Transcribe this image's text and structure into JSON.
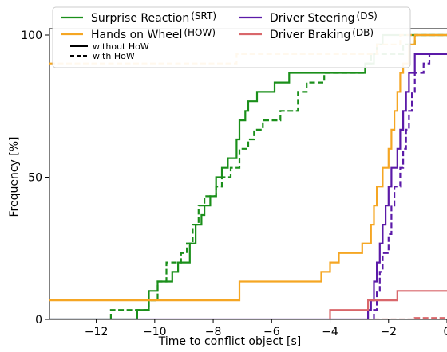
{
  "chart_data": {
    "type": "line",
    "title": "",
    "xlabel": "Time to conflict object [s]",
    "ylabel": "Frequency [%]",
    "xlim": [
      -13.6,
      0
    ],
    "ylim": [
      0,
      100
    ],
    "xticks": [
      -12,
      -10,
      -8,
      -6,
      -4,
      -2,
      0
    ],
    "xtick_labels": [
      "−12",
      "−10",
      "−8",
      "−6",
      "−4",
      "−2",
      "0"
    ],
    "yticks": [
      0,
      50,
      100
    ],
    "ytick_labels": [
      "0",
      "50",
      "100"
    ],
    "grid": false,
    "legend": {
      "placement": "top-left",
      "entries": [
        {
          "name": "Surprise Reaction",
          "abbr": "(SRT)",
          "color": "#1a8f1a"
        },
        {
          "name": "Hands on Wheel",
          "abbr": "(HOW)",
          "color": "#f5a623"
        },
        {
          "name": "Driver Steering",
          "abbr": "(DS)",
          "color": "#5b1aa8"
        },
        {
          "name": "Driver Braking",
          "abbr": "(DB)",
          "color": "#d9676b"
        }
      ],
      "style_entries": [
        {
          "label": "without HoW",
          "dash": "solid"
        },
        {
          "label": "with HoW",
          "dash": "dashed"
        }
      ]
    },
    "series": [
      {
        "key": "srt_solid",
        "color": "#1a8f1a",
        "dash": "solid",
        "points": [
          [
            -13.6,
            0
          ],
          [
            -10.6,
            0
          ],
          [
            -10.6,
            3.3
          ],
          [
            -10.2,
            3.3
          ],
          [
            -10.2,
            10
          ],
          [
            -9.9,
            10
          ],
          [
            -9.9,
            13.3
          ],
          [
            -9.4,
            13.3
          ],
          [
            -9.4,
            16.7
          ],
          [
            -9.2,
            16.7
          ],
          [
            -9.2,
            20
          ],
          [
            -8.8,
            20
          ],
          [
            -8.8,
            26.7
          ],
          [
            -8.6,
            26.7
          ],
          [
            -8.6,
            33.3
          ],
          [
            -8.4,
            33.3
          ],
          [
            -8.4,
            36.7
          ],
          [
            -8.3,
            36.7
          ],
          [
            -8.3,
            40
          ],
          [
            -8.1,
            40
          ],
          [
            -8.1,
            43.3
          ],
          [
            -7.9,
            43.3
          ],
          [
            -7.9,
            50
          ],
          [
            -7.7,
            50
          ],
          [
            -7.7,
            53.3
          ],
          [
            -7.5,
            53.3
          ],
          [
            -7.5,
            56.7
          ],
          [
            -7.2,
            56.7
          ],
          [
            -7.2,
            63.3
          ],
          [
            -7.1,
            63.3
          ],
          [
            -7.1,
            70
          ],
          [
            -6.9,
            70
          ],
          [
            -6.9,
            73.3
          ],
          [
            -6.8,
            73.3
          ],
          [
            -6.8,
            76.7
          ],
          [
            -6.5,
            76.7
          ],
          [
            -6.5,
            80
          ],
          [
            -5.9,
            80
          ],
          [
            -5.9,
            83.3
          ],
          [
            -5.4,
            83.3
          ],
          [
            -5.4,
            86.7
          ],
          [
            -2.8,
            86.7
          ],
          [
            -2.8,
            90
          ],
          [
            -2.5,
            90
          ],
          [
            -2.5,
            93.3
          ],
          [
            -2.4,
            93.3
          ],
          [
            -2.4,
            96.7
          ],
          [
            -2.2,
            96.7
          ],
          [
            -2.2,
            100
          ],
          [
            0,
            100
          ]
        ]
      },
      {
        "key": "srt_dashed",
        "color": "#1a8f1a",
        "dash": "dashed",
        "points": [
          [
            -11.5,
            0
          ],
          [
            -11.5,
            3.3
          ],
          [
            -10.2,
            3.3
          ],
          [
            -10.2,
            6.7
          ],
          [
            -9.9,
            6.7
          ],
          [
            -9.9,
            13.3
          ],
          [
            -9.6,
            13.3
          ],
          [
            -9.6,
            20
          ],
          [
            -9.1,
            20
          ],
          [
            -9.1,
            23.3
          ],
          [
            -8.9,
            23.3
          ],
          [
            -8.9,
            26.7
          ],
          [
            -8.7,
            26.7
          ],
          [
            -8.7,
            33.3
          ],
          [
            -8.5,
            33.3
          ],
          [
            -8.5,
            40
          ],
          [
            -8.3,
            40
          ],
          [
            -8.3,
            43.3
          ],
          [
            -7.9,
            43.3
          ],
          [
            -7.9,
            46.7
          ],
          [
            -7.7,
            46.7
          ],
          [
            -7.7,
            50
          ],
          [
            -7.4,
            50
          ],
          [
            -7.4,
            53.3
          ],
          [
            -7.1,
            53.3
          ],
          [
            -7.1,
            60
          ],
          [
            -6.8,
            60
          ],
          [
            -6.8,
            63.3
          ],
          [
            -6.6,
            63.3
          ],
          [
            -6.6,
            66.7
          ],
          [
            -6.3,
            66.7
          ],
          [
            -6.3,
            70
          ],
          [
            -5.7,
            70
          ],
          [
            -5.7,
            73.3
          ],
          [
            -5.1,
            73.3
          ],
          [
            -5.1,
            80
          ],
          [
            -4.8,
            80
          ],
          [
            -4.8,
            83.3
          ],
          [
            -4.2,
            83.3
          ],
          [
            -4.2,
            86.7
          ],
          [
            -2.8,
            86.7
          ],
          [
            -2.8,
            90
          ],
          [
            -2.6,
            90
          ],
          [
            -2.6,
            93.3
          ],
          [
            -1.5,
            93.3
          ],
          [
            -1.5,
            96.7
          ],
          [
            -1.1,
            96.7
          ],
          [
            -1.1,
            100
          ],
          [
            0,
            100
          ]
        ]
      },
      {
        "key": "how_solid",
        "color": "#f5a623",
        "dash": "solid",
        "points": [
          [
            -13.6,
            6.7
          ],
          [
            -7.1,
            6.7
          ],
          [
            -7.1,
            13.3
          ],
          [
            -4.3,
            13.3
          ],
          [
            -4.3,
            16.7
          ],
          [
            -4.0,
            16.7
          ],
          [
            -4.0,
            20
          ],
          [
            -3.7,
            20
          ],
          [
            -3.7,
            23.3
          ],
          [
            -2.9,
            23.3
          ],
          [
            -2.9,
            26.7
          ],
          [
            -2.6,
            26.7
          ],
          [
            -2.6,
            33.3
          ],
          [
            -2.5,
            33.3
          ],
          [
            -2.5,
            40
          ],
          [
            -2.4,
            40
          ],
          [
            -2.4,
            46.7
          ],
          [
            -2.2,
            46.7
          ],
          [
            -2.2,
            53.3
          ],
          [
            -2.0,
            53.3
          ],
          [
            -2.0,
            60
          ],
          [
            -1.9,
            60
          ],
          [
            -1.9,
            66.7
          ],
          [
            -1.8,
            66.7
          ],
          [
            -1.8,
            73.3
          ],
          [
            -1.7,
            73.3
          ],
          [
            -1.7,
            80
          ],
          [
            -1.6,
            80
          ],
          [
            -1.6,
            86.7
          ],
          [
            -1.5,
            86.7
          ],
          [
            -1.5,
            90
          ],
          [
            -1.3,
            90
          ],
          [
            -1.3,
            96.7
          ],
          [
            -1.1,
            96.7
          ],
          [
            -1.1,
            100
          ],
          [
            0,
            100
          ]
        ]
      },
      {
        "key": "how_dashed",
        "color": "#f5a623",
        "dash": "dashed",
        "points": [
          [
            -13.6,
            90
          ],
          [
            -7.2,
            90
          ],
          [
            -7.2,
            93.3
          ],
          [
            -2.4,
            93.3
          ],
          [
            -2.4,
            96.7
          ],
          [
            -1.6,
            96.7
          ],
          [
            -1.6,
            100
          ],
          [
            0,
            100
          ]
        ]
      },
      {
        "key": "ds_solid",
        "color": "#5b1aa8",
        "dash": "solid",
        "points": [
          [
            -13.6,
            0
          ],
          [
            -2.7,
            0
          ],
          [
            -2.7,
            3.3
          ],
          [
            -2.6,
            3.3
          ],
          [
            -2.6,
            6.7
          ],
          [
            -2.5,
            6.7
          ],
          [
            -2.5,
            13.3
          ],
          [
            -2.4,
            13.3
          ],
          [
            -2.4,
            20
          ],
          [
            -2.3,
            20
          ],
          [
            -2.3,
            26.7
          ],
          [
            -2.2,
            26.7
          ],
          [
            -2.2,
            33.3
          ],
          [
            -2.1,
            33.3
          ],
          [
            -2.1,
            40
          ],
          [
            -2.0,
            40
          ],
          [
            -2.0,
            46.7
          ],
          [
            -1.9,
            46.7
          ],
          [
            -1.9,
            53.3
          ],
          [
            -1.7,
            53.3
          ],
          [
            -1.7,
            60
          ],
          [
            -1.6,
            60
          ],
          [
            -1.6,
            66.7
          ],
          [
            -1.5,
            66.7
          ],
          [
            -1.5,
            73.3
          ],
          [
            -1.4,
            73.3
          ],
          [
            -1.4,
            80
          ],
          [
            -1.3,
            80
          ],
          [
            -1.3,
            86.7
          ],
          [
            -1.1,
            86.7
          ],
          [
            -1.1,
            93.3
          ],
          [
            0,
            93.3
          ]
        ]
      },
      {
        "key": "ds_dashed",
        "color": "#5b1aa8",
        "dash": "dashed",
        "points": [
          [
            -2.5,
            0
          ],
          [
            -2.5,
            3.3
          ],
          [
            -2.4,
            3.3
          ],
          [
            -2.4,
            10
          ],
          [
            -2.3,
            10
          ],
          [
            -2.3,
            16.7
          ],
          [
            -2.2,
            16.7
          ],
          [
            -2.2,
            23.3
          ],
          [
            -2.0,
            23.3
          ],
          [
            -2.0,
            30
          ],
          [
            -1.9,
            30
          ],
          [
            -1.9,
            40
          ],
          [
            -1.8,
            40
          ],
          [
            -1.8,
            46.7
          ],
          [
            -1.6,
            46.7
          ],
          [
            -1.6,
            53.3
          ],
          [
            -1.5,
            53.3
          ],
          [
            -1.5,
            60
          ],
          [
            -1.4,
            60
          ],
          [
            -1.4,
            66.7
          ],
          [
            -1.3,
            66.7
          ],
          [
            -1.3,
            73.3
          ],
          [
            -1.2,
            73.3
          ],
          [
            -1.2,
            80
          ],
          [
            -1.1,
            80
          ],
          [
            -1.1,
            86.7
          ],
          [
            -0.8,
            86.7
          ],
          [
            -0.8,
            90
          ],
          [
            -0.6,
            90
          ],
          [
            -0.6,
            93.3
          ],
          [
            0,
            93.3
          ]
        ]
      },
      {
        "key": "db_solid",
        "color": "#d9676b",
        "dash": "solid",
        "points": [
          [
            -4.0,
            0
          ],
          [
            -4.0,
            3.3
          ],
          [
            -2.7,
            3.3
          ],
          [
            -2.7,
            6.7
          ],
          [
            -1.7,
            6.7
          ],
          [
            -1.7,
            10
          ],
          [
            0,
            10
          ]
        ]
      },
      {
        "key": "db_dashed",
        "color": "#d9676b",
        "dash": "dashed",
        "points": [
          [
            -2.5,
            0
          ],
          [
            -1.1,
            0
          ],
          [
            -1.1,
            0.5
          ],
          [
            0,
            0.5
          ]
        ]
      }
    ]
  }
}
